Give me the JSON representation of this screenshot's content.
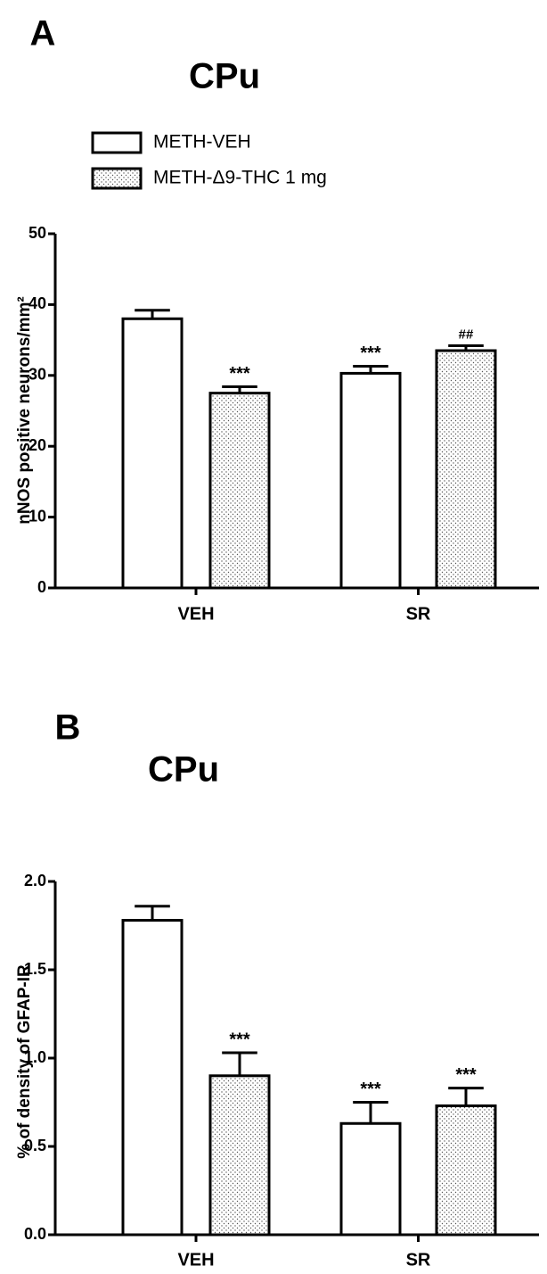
{
  "chart_data": [
    {
      "type": "bar",
      "panel": "A",
      "title": "CPu",
      "ylabel": "nNOS positive neurons/mm²",
      "categories": [
        "VEH",
        "SR"
      ],
      "series": [
        {
          "name": "METH-VEH",
          "color": "#ffffff",
          "values": [
            38,
            30.3
          ],
          "error": [
            1.2,
            1.0
          ],
          "annotations": [
            null,
            "***"
          ]
        },
        {
          "name": "METH-Δ9-THC 1 mg",
          "color": "#ffffff",
          "pattern": "dots",
          "values": [
            27.5,
            33.5
          ],
          "error": [
            0.9,
            0.7
          ],
          "annotations": [
            "***",
            "##"
          ]
        }
      ],
      "ylim": [
        0,
        50
      ],
      "yticks": [
        0,
        10,
        20,
        30,
        40,
        50
      ],
      "legend": "top-left"
    },
    {
      "type": "bar",
      "panel": "B",
      "title": "CPu",
      "ylabel": "% of density of GFAP-IR",
      "categories": [
        "VEH",
        "SR"
      ],
      "series": [
        {
          "color": "#ffffff",
          "values": [
            1.78,
            0.63
          ],
          "error": [
            0.08,
            0.12
          ],
          "annotations": [
            null,
            "***"
          ]
        },
        {
          "color": "#ffffff",
          "pattern": "dots",
          "values": [
            0.9,
            0.73
          ],
          "error": [
            0.13,
            0.1
          ],
          "annotations": [
            "***",
            "***"
          ]
        }
      ],
      "ylim": [
        0,
        2
      ],
      "yticks": [
        {
          "value": 0,
          "label": "0.0"
        },
        0.5,
        {
          "value": 1,
          "label": "1.0"
        },
        1.5,
        {
          "value": 2,
          "label": "2.0"
        }
      ]
    }
  ]
}
